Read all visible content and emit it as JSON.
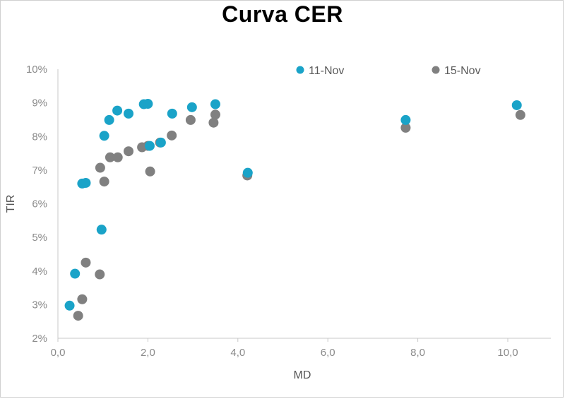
{
  "chart_data": {
    "type": "scatter",
    "title": "Curva CER",
    "xlabel": "MD",
    "ylabel": "TIR",
    "xlim": [
      0,
      11
    ],
    "ylim": [
      2,
      10
    ],
    "x_ticks": [
      "0,0",
      "2,0",
      "4,0",
      "6,0",
      "8,0",
      "10,0"
    ],
    "y_ticks": [
      "2%",
      "3%",
      "4%",
      "5%",
      "6%",
      "7%",
      "8%",
      "9%",
      "10%"
    ],
    "legend_position": "top",
    "series": [
      {
        "name": "11-Nov",
        "color": "#1aa3c8",
        "points": [
          [
            0.26,
            2.97
          ],
          [
            0.38,
            3.92
          ],
          [
            0.54,
            6.6
          ],
          [
            0.62,
            6.62
          ],
          [
            0.97,
            5.23
          ],
          [
            1.03,
            8.02
          ],
          [
            1.14,
            8.49
          ],
          [
            1.32,
            8.77
          ],
          [
            1.57,
            8.68
          ],
          [
            1.91,
            8.96
          ],
          [
            2.0,
            8.97
          ],
          [
            2.04,
            7.72
          ],
          [
            2.29,
            7.82
          ],
          [
            2.54,
            8.68
          ],
          [
            2.98,
            8.87
          ],
          [
            3.5,
            8.96
          ],
          [
            4.22,
            6.92
          ],
          [
            7.73,
            8.49
          ],
          [
            10.2,
            8.93
          ]
        ]
      },
      {
        "name": "15-Nov",
        "color": "#808080",
        "points": [
          [
            0.45,
            2.67
          ],
          [
            0.54,
            3.16
          ],
          [
            0.62,
            4.25
          ],
          [
            0.93,
            3.9
          ],
          [
            0.94,
            7.07
          ],
          [
            1.03,
            6.66
          ],
          [
            1.16,
            7.38
          ],
          [
            1.33,
            7.38
          ],
          [
            1.57,
            7.56
          ],
          [
            1.87,
            7.68
          ],
          [
            2.0,
            7.72
          ],
          [
            2.05,
            6.96
          ],
          [
            2.27,
            7.82
          ],
          [
            2.53,
            8.03
          ],
          [
            2.95,
            8.49
          ],
          [
            3.46,
            8.41
          ],
          [
            3.5,
            8.65
          ],
          [
            4.21,
            6.84
          ],
          [
            7.73,
            8.26
          ],
          [
            10.28,
            8.64
          ]
        ]
      }
    ]
  }
}
